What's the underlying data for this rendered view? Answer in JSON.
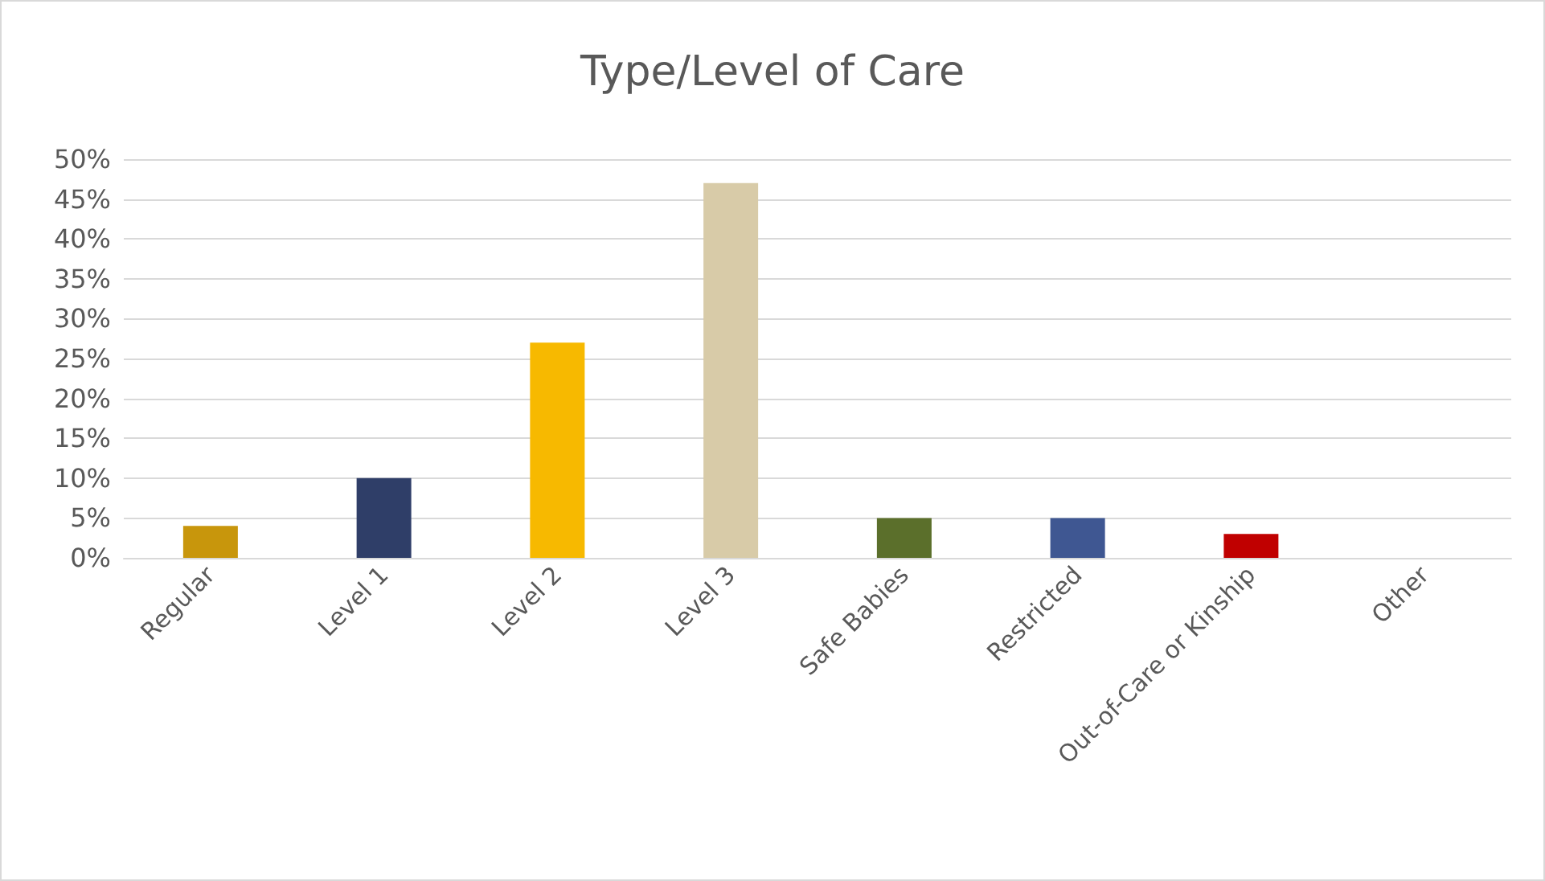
{
  "chart_data": {
    "type": "bar",
    "title": "Type/Level of Care",
    "categories": [
      "Regular",
      "Level 1",
      "Level 2",
      "Level 3",
      "Safe Babies",
      "Restricted",
      "Out-of-Care or Kinship",
      "Other"
    ],
    "values": [
      4,
      10,
      27,
      47,
      5,
      5,
      3,
      0
    ],
    "colors": [
      "#c8960c",
      "#2f3e68",
      "#f7b900",
      "#d8cba8",
      "#5b6f2b",
      "#3f5792",
      "#c00000",
      "#808080"
    ],
    "ylim": [
      0,
      50
    ],
    "yticks": [
      {
        "value": 0,
        "label": "0%"
      },
      {
        "value": 5,
        "label": "5%"
      },
      {
        "value": 10,
        "label": "10%"
      },
      {
        "value": 15,
        "label": "15%"
      },
      {
        "value": 20,
        "label": "20%"
      },
      {
        "value": 25,
        "label": "25%"
      },
      {
        "value": 30,
        "label": "30%"
      },
      {
        "value": 35,
        "label": "35%"
      },
      {
        "value": 40,
        "label": "40%"
      },
      {
        "value": 45,
        "label": "45%"
      },
      {
        "value": 50,
        "label": "50%"
      }
    ],
    "grid": "y"
  }
}
